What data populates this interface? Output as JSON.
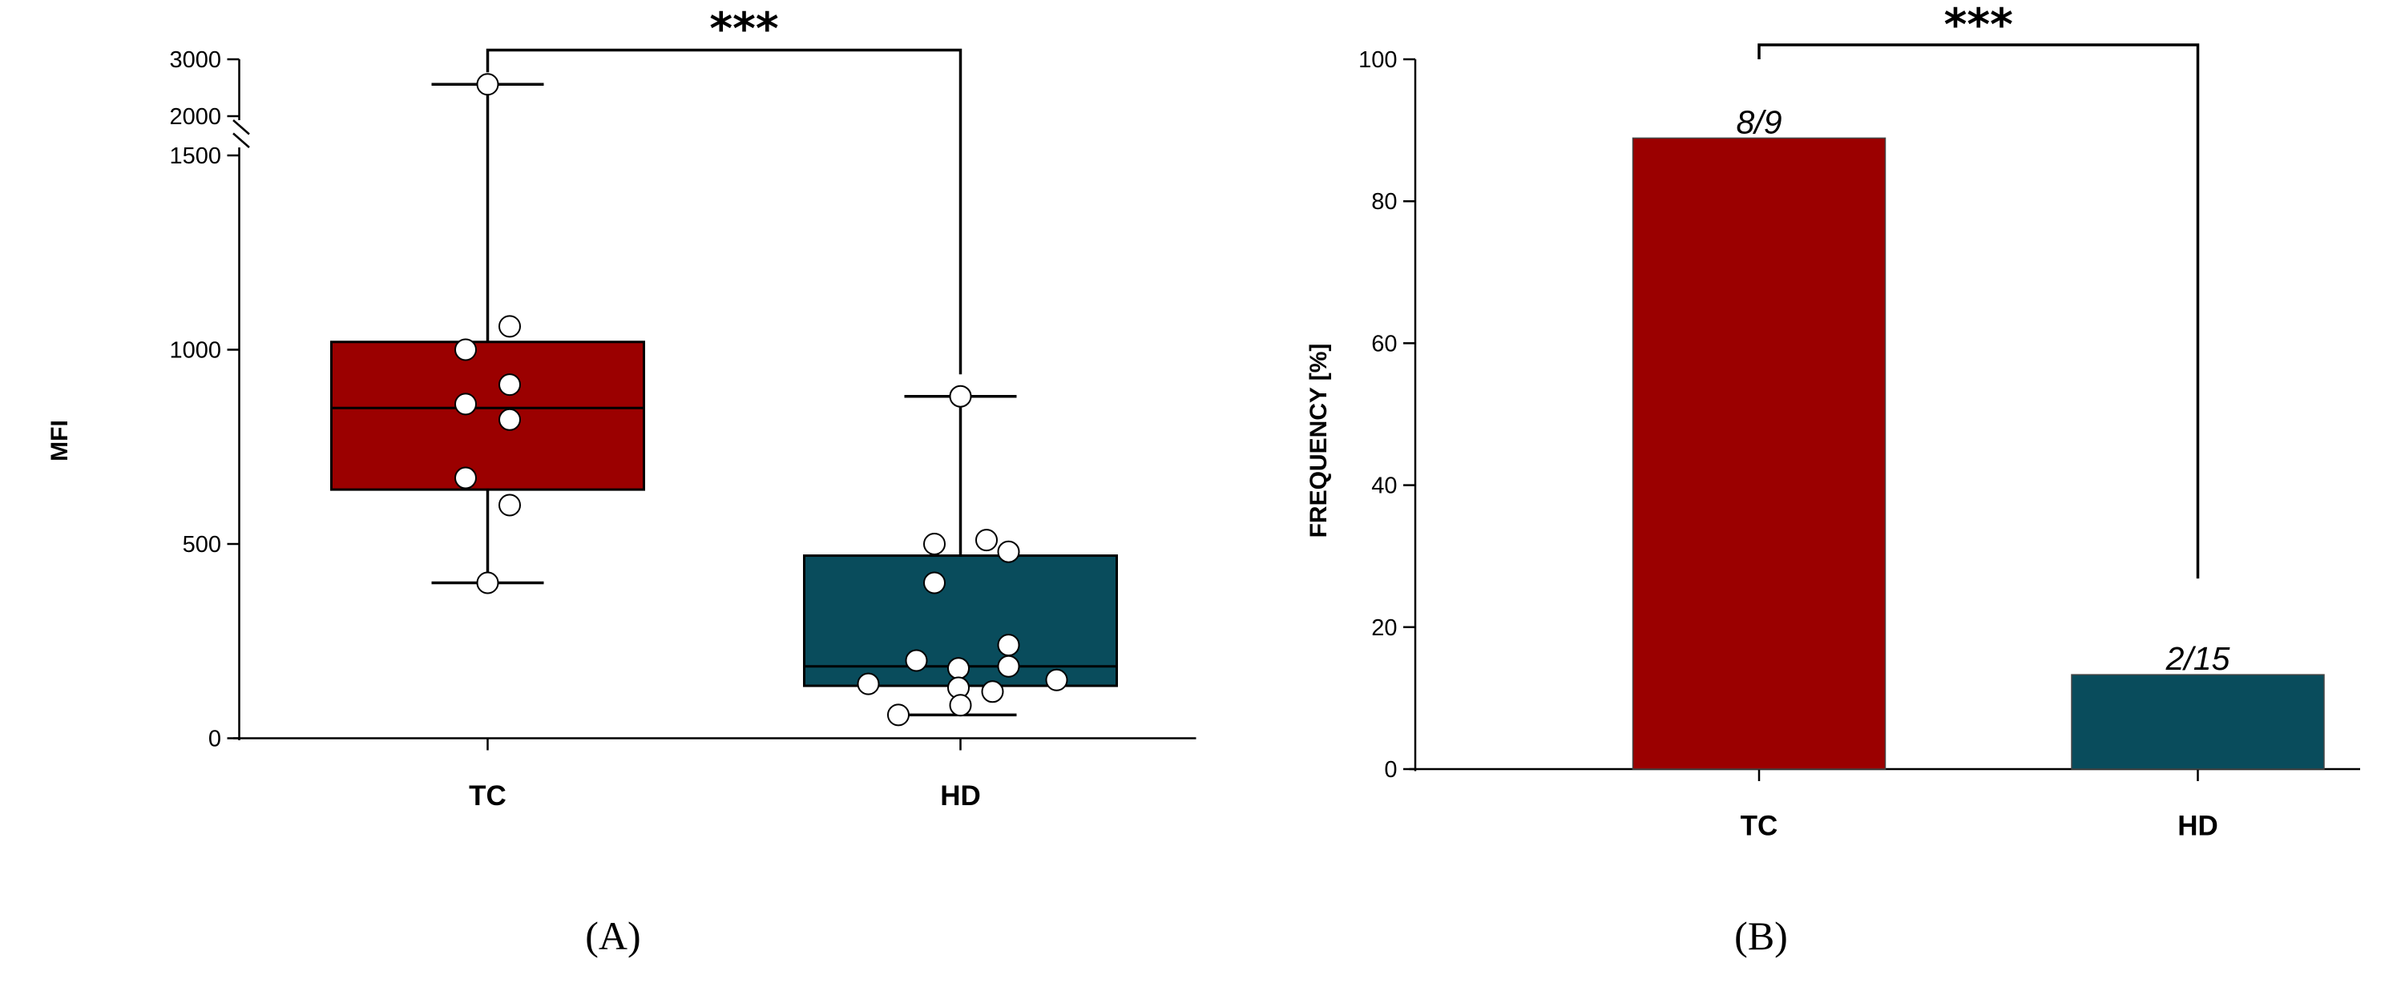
{
  "chart_data": [
    {
      "panel_label": "(A)",
      "type": "box",
      "xlabel": "",
      "ylabel": "MFI",
      "ylim": [
        0,
        3000
      ],
      "axis_break": [
        1500,
        2000
      ],
      "yticks": [
        0,
        500,
        1000,
        1500,
        2000,
        3000
      ],
      "categories": [
        "TC",
        "HD"
      ],
      "colors": [
        "#9b0000",
        "#094c5c"
      ],
      "boxes": [
        {
          "name": "TC",
          "q1": 640,
          "median": 850,
          "q3": 1020,
          "whisker_low": 400,
          "whisker_high": 2560,
          "points": [
            2560,
            1060,
            1000,
            910,
            860,
            820,
            670,
            600,
            400
          ]
        },
        {
          "name": "HD",
          "q1": 135,
          "median": 185,
          "q3": 470,
          "whisker_low": 60,
          "whisker_high": 880,
          "points": [
            880,
            510,
            500,
            480,
            400,
            240,
            200,
            185,
            180,
            150,
            140,
            130,
            120,
            85,
            60
          ]
        }
      ],
      "significance": "***"
    },
    {
      "panel_label": "(B)",
      "type": "bar",
      "xlabel": "",
      "ylabel": "FREQUENCY [%]",
      "ylim": [
        0,
        100
      ],
      "yticks": [
        0,
        20,
        40,
        60,
        80,
        100
      ],
      "categories": [
        "TC",
        "HD"
      ],
      "colors": [
        "#9b0000",
        "#094c5c"
      ],
      "values": [
        88.9,
        13.3
      ],
      "data_labels": [
        "8/9",
        "2/15"
      ],
      "significance": "***"
    }
  ]
}
